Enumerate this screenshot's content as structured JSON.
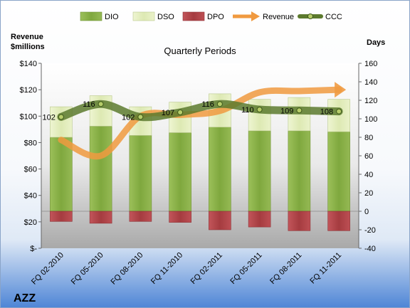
{
  "chart_data": {
    "type": "bar",
    "title": "Quarterly Periods",
    "ticker": "AZZ",
    "left_axis": {
      "label_line1": "Revenue",
      "label_line2": "$millions",
      "ylim": [
        0,
        140
      ],
      "ticks": [
        {
          "value": 0,
          "label": "$-"
        },
        {
          "value": 20,
          "label": "$20"
        },
        {
          "value": 40,
          "label": "$40"
        },
        {
          "value": 60,
          "label": "$60"
        },
        {
          "value": 80,
          "label": "$80"
        },
        {
          "value": 100,
          "label": "$100"
        },
        {
          "value": 120,
          "label": "$120"
        },
        {
          "value": 140,
          "label": "$140"
        }
      ]
    },
    "right_axis": {
      "label": "Days",
      "ylim": [
        -40,
        160
      ],
      "ticks": [
        {
          "value": -40,
          "label": "-40"
        },
        {
          "value": -20,
          "label": "-20"
        },
        {
          "value": 0,
          "label": "0"
        },
        {
          "value": 20,
          "label": "20"
        },
        {
          "value": 40,
          "label": "40"
        },
        {
          "value": 60,
          "label": "60"
        },
        {
          "value": 80,
          "label": "80"
        },
        {
          "value": 100,
          "label": "100"
        },
        {
          "value": 120,
          "label": "120"
        },
        {
          "value": 140,
          "label": "140"
        },
        {
          "value": 160,
          "label": "160"
        }
      ]
    },
    "categories": [
      "FQ 02-2010",
      "FQ 05-2010",
      "FQ 08-2010",
      "FQ 11-2010",
      "FQ 02-2011",
      "FQ 05-2011",
      "FQ 08-2011",
      "FQ 11-2011"
    ],
    "series": [
      {
        "name": "DIO",
        "values": [
          80,
          92,
          82,
          85,
          91,
          87,
          87,
          86
        ],
        "color": "#8bb04a"
      },
      {
        "name": "DSO",
        "values": [
          33,
          33,
          31,
          33,
          36,
          34,
          36,
          35
        ],
        "color": "#e6f0c3"
      },
      {
        "name": "DPO",
        "values": [
          -11,
          -13,
          -11,
          -12,
          -20,
          -17,
          -21,
          -21
        ],
        "color": "#b5464a"
      },
      {
        "name": "Revenue",
        "values": [
          82,
          70,
          100,
          101,
          104,
          118,
          119,
          120
        ],
        "color": "#f09a40"
      },
      {
        "name": "CCC",
        "values": [
          102,
          116,
          102,
          107,
          116,
          110,
          109,
          108
        ],
        "color": "#5c7a2e"
      }
    ],
    "ccc_labels": [
      "102",
      "116",
      "102",
      "107",
      "116",
      "110",
      "109",
      "108"
    ],
    "grid": false,
    "legend_position": "top"
  }
}
